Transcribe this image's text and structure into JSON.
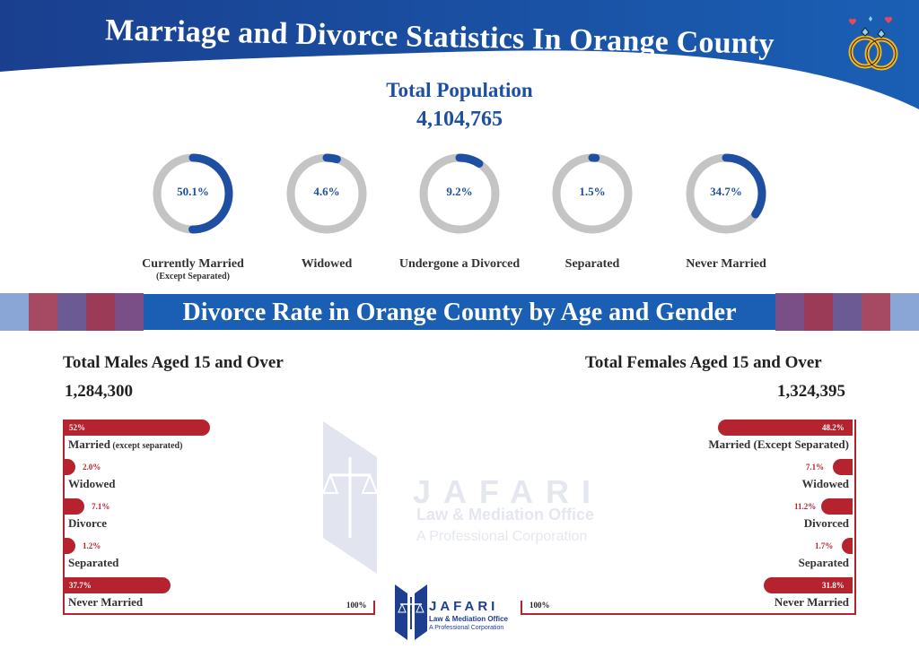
{
  "header": {
    "title": "Marriage and Divorce Statistics In Orange County",
    "icon": "wedding-rings-icon",
    "colors": {
      "dark_blue": "#1a3f8f",
      "bright_blue": "#1a5fb4",
      "accent_red": "#b5232f"
    }
  },
  "population": {
    "title": "Total Population",
    "value": "4,104,765"
  },
  "band": {
    "title": "Divorce Rate in Orange County by Age and Gender"
  },
  "males": {
    "title": "Total Males Aged 15 and Over",
    "total": "1,284,300",
    "axis_max": "100%"
  },
  "females": {
    "title": "Total Females Aged 15 and Over",
    "total": "1,324,395",
    "axis_max": "100%"
  },
  "watermark": {
    "name": "JAFARI",
    "line1": "Law & Mediation Office",
    "line2": "A Professional Corporation"
  },
  "footer_logo": {
    "name": "JAFARI",
    "line1": "Law & Mediation Office",
    "line2": "A Professional Corporation"
  },
  "chart_data": [
    {
      "type": "pie",
      "title": "Total Population",
      "categories": [
        "Currently Married (Except Separated)",
        "Widowed",
        "Undergone a Divorced",
        "Separated",
        "Never Married"
      ],
      "values": [
        50.1,
        4.6,
        9.2,
        1.5,
        34.7
      ],
      "labels": [
        "50.1%",
        "4.6%",
        "9.2%",
        "1.5%",
        "34.7%"
      ],
      "display": [
        {
          "label": "Currently Married",
          "sub": "(Except Separated)"
        },
        {
          "label": "Widowed",
          "sub": ""
        },
        {
          "label": "Undergone a Divorced",
          "sub": ""
        },
        {
          "label": "Separated",
          "sub": ""
        },
        {
          "label": "Never Married",
          "sub": ""
        }
      ]
    },
    {
      "type": "bar",
      "title": "Total Males Aged 15 and Over",
      "categories": [
        "Married",
        "Widowed",
        "Divorce",
        "Separated",
        "Never Married"
      ],
      "category_suffix": [
        "(except separated)",
        "",
        "",
        "",
        ""
      ],
      "values": [
        52,
        2.0,
        7.1,
        1.2,
        37.7
      ],
      "labels": [
        "52%",
        "2.0%",
        "7.1%",
        "1.2%",
        "37.7%"
      ],
      "xlim": [
        0,
        100
      ]
    },
    {
      "type": "bar",
      "title": "Total Females Aged 15 and Over",
      "categories": [
        "Married (Except Separated)",
        "Widowed",
        "Divorced",
        "Separated",
        "Never Married"
      ],
      "values": [
        48.2,
        7.1,
        11.2,
        1.7,
        31.8
      ],
      "labels": [
        "48.2%",
        "7.1%",
        "11.2%",
        "1.7%",
        "31.8%"
      ],
      "xlim": [
        0,
        100
      ]
    }
  ]
}
